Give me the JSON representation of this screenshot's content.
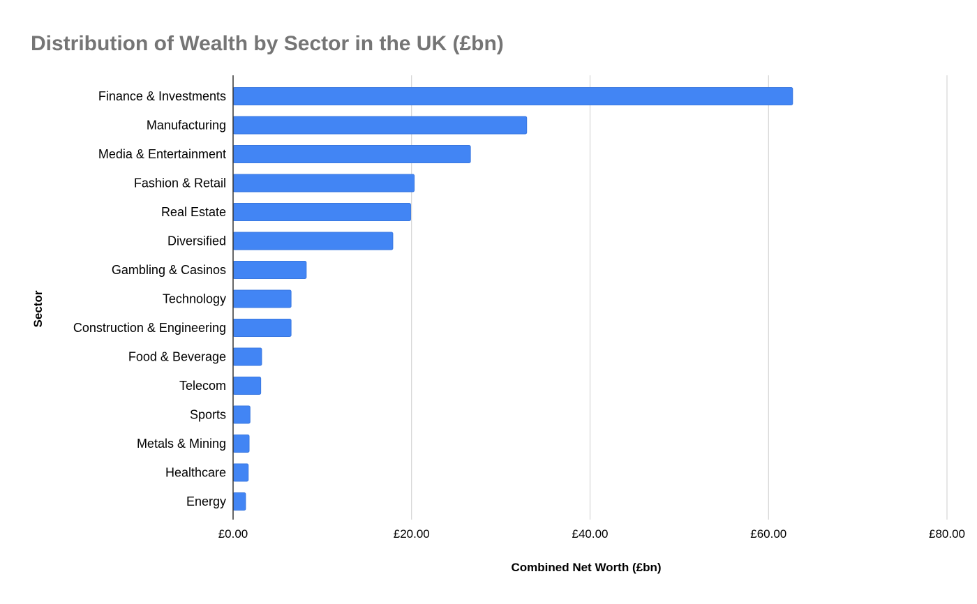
{
  "chart_data": {
    "type": "bar",
    "orientation": "horizontal",
    "title": "Distribution of Wealth by Sector in the UK (£bn)",
    "xlabel": "Combined Net Worth (£bn)",
    "ylabel": "Sector",
    "xlim": [
      0,
      80
    ],
    "x_ticks": [
      0,
      20,
      40,
      60,
      80
    ],
    "x_tick_labels": [
      "£0.00",
      "£20.00",
      "£40.00",
      "£60.00",
      "£80.00"
    ],
    "grid": true,
    "legend": "none",
    "colors": {
      "bar_fill": "#4285f4",
      "bar_stroke": "#3a78e0",
      "title": "#757575",
      "grid": "#cccccc"
    },
    "categories": [
      "Finance & Investments",
      "Manufacturing",
      "Media & Entertainment",
      "Fashion & Retail",
      "Real Estate",
      "Diversified",
      "Gambling & Casinos",
      "Technology",
      "Construction & Engineering",
      "Food & Beverage",
      "Telecom",
      "Sports",
      "Metals & Mining",
      "Healthcare",
      "Energy"
    ],
    "values": [
      62.7,
      32.9,
      26.6,
      20.3,
      19.9,
      17.9,
      8.2,
      6.5,
      6.5,
      3.2,
      3.1,
      1.9,
      1.8,
      1.7,
      1.4
    ]
  }
}
